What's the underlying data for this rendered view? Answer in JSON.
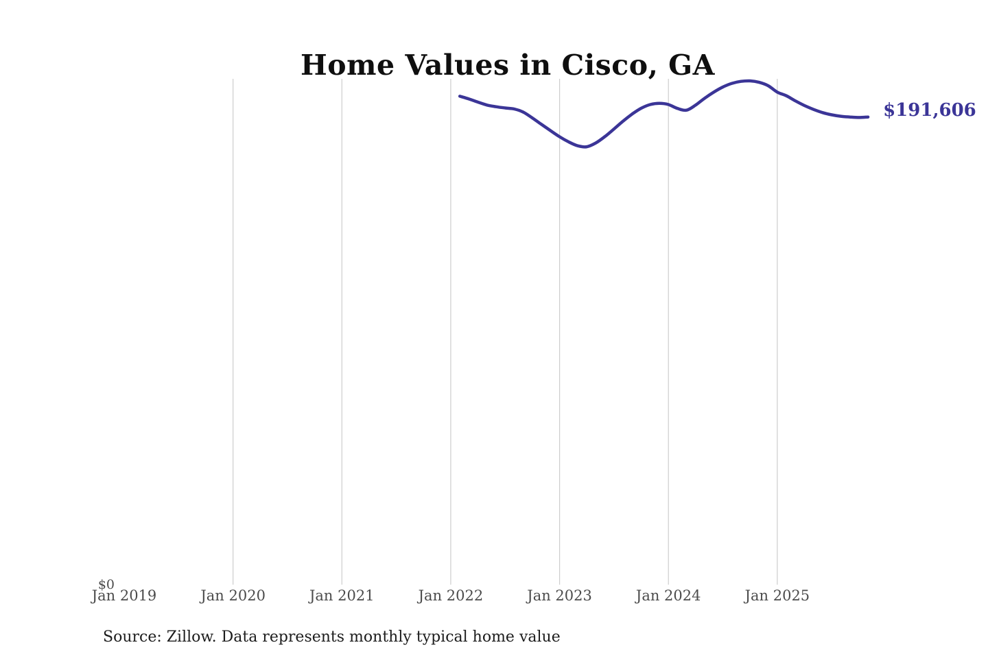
{
  "header": {
    "title": "Home Values in Cisco, GA"
  },
  "chart_data": {
    "type": "line",
    "title": "Home Values in Cisco, GA",
    "xlabel": "",
    "ylabel": "",
    "ylim": [
      0,
      220000
    ],
    "grid": "vertical-yearly",
    "legend": "none",
    "line_color": "#3b3597",
    "grid_color": "#cdcdcd",
    "x_tick_labels": [
      "Jan 2019",
      "Jan 2020",
      "Jan 2021",
      "Jan 2022",
      "Jan 2023",
      "Jan 2024",
      "Jan 2025"
    ],
    "y_zero_label": "$0",
    "end_value_label": "$191,606",
    "series": [
      {
        "name": "Monthly typical home value",
        "unit": "USD",
        "x": [
          "2022-02",
          "2022-03",
          "2022-04",
          "2022-05",
          "2022-06",
          "2022-07",
          "2022-08",
          "2022-09",
          "2022-10",
          "2022-11",
          "2022-12",
          "2023-01",
          "2023-02",
          "2023-03",
          "2023-04",
          "2023-05",
          "2023-06",
          "2023-07",
          "2023-08",
          "2023-09",
          "2023-10",
          "2023-11",
          "2023-12",
          "2024-01",
          "2024-02",
          "2024-03",
          "2024-04",
          "2024-05",
          "2024-06",
          "2024-07",
          "2024-08",
          "2024-09",
          "2024-10",
          "2024-11",
          "2024-12",
          "2025-01",
          "2025-02",
          "2025-03",
          "2025-04",
          "2025-05",
          "2025-06",
          "2025-07",
          "2025-08",
          "2025-09",
          "2025-10",
          "2025-11"
        ],
        "values": [
          200100,
          199000,
          197700,
          196500,
          195800,
          195300,
          194900,
          193600,
          191200,
          188600,
          186000,
          183500,
          181400,
          179800,
          179400,
          181000,
          183600,
          186700,
          189900,
          192800,
          195200,
          196700,
          197200,
          196700,
          195100,
          194400,
          196500,
          199300,
          201800,
          203900,
          205400,
          206200,
          206400,
          205800,
          204400,
          201800,
          200300,
          198200,
          196300,
          194700,
          193400,
          192500,
          191900,
          191600,
          191400,
          191606
        ]
      }
    ]
  },
  "footer": {
    "source_note": "Source: Zillow. Data represents monthly typical home value"
  }
}
